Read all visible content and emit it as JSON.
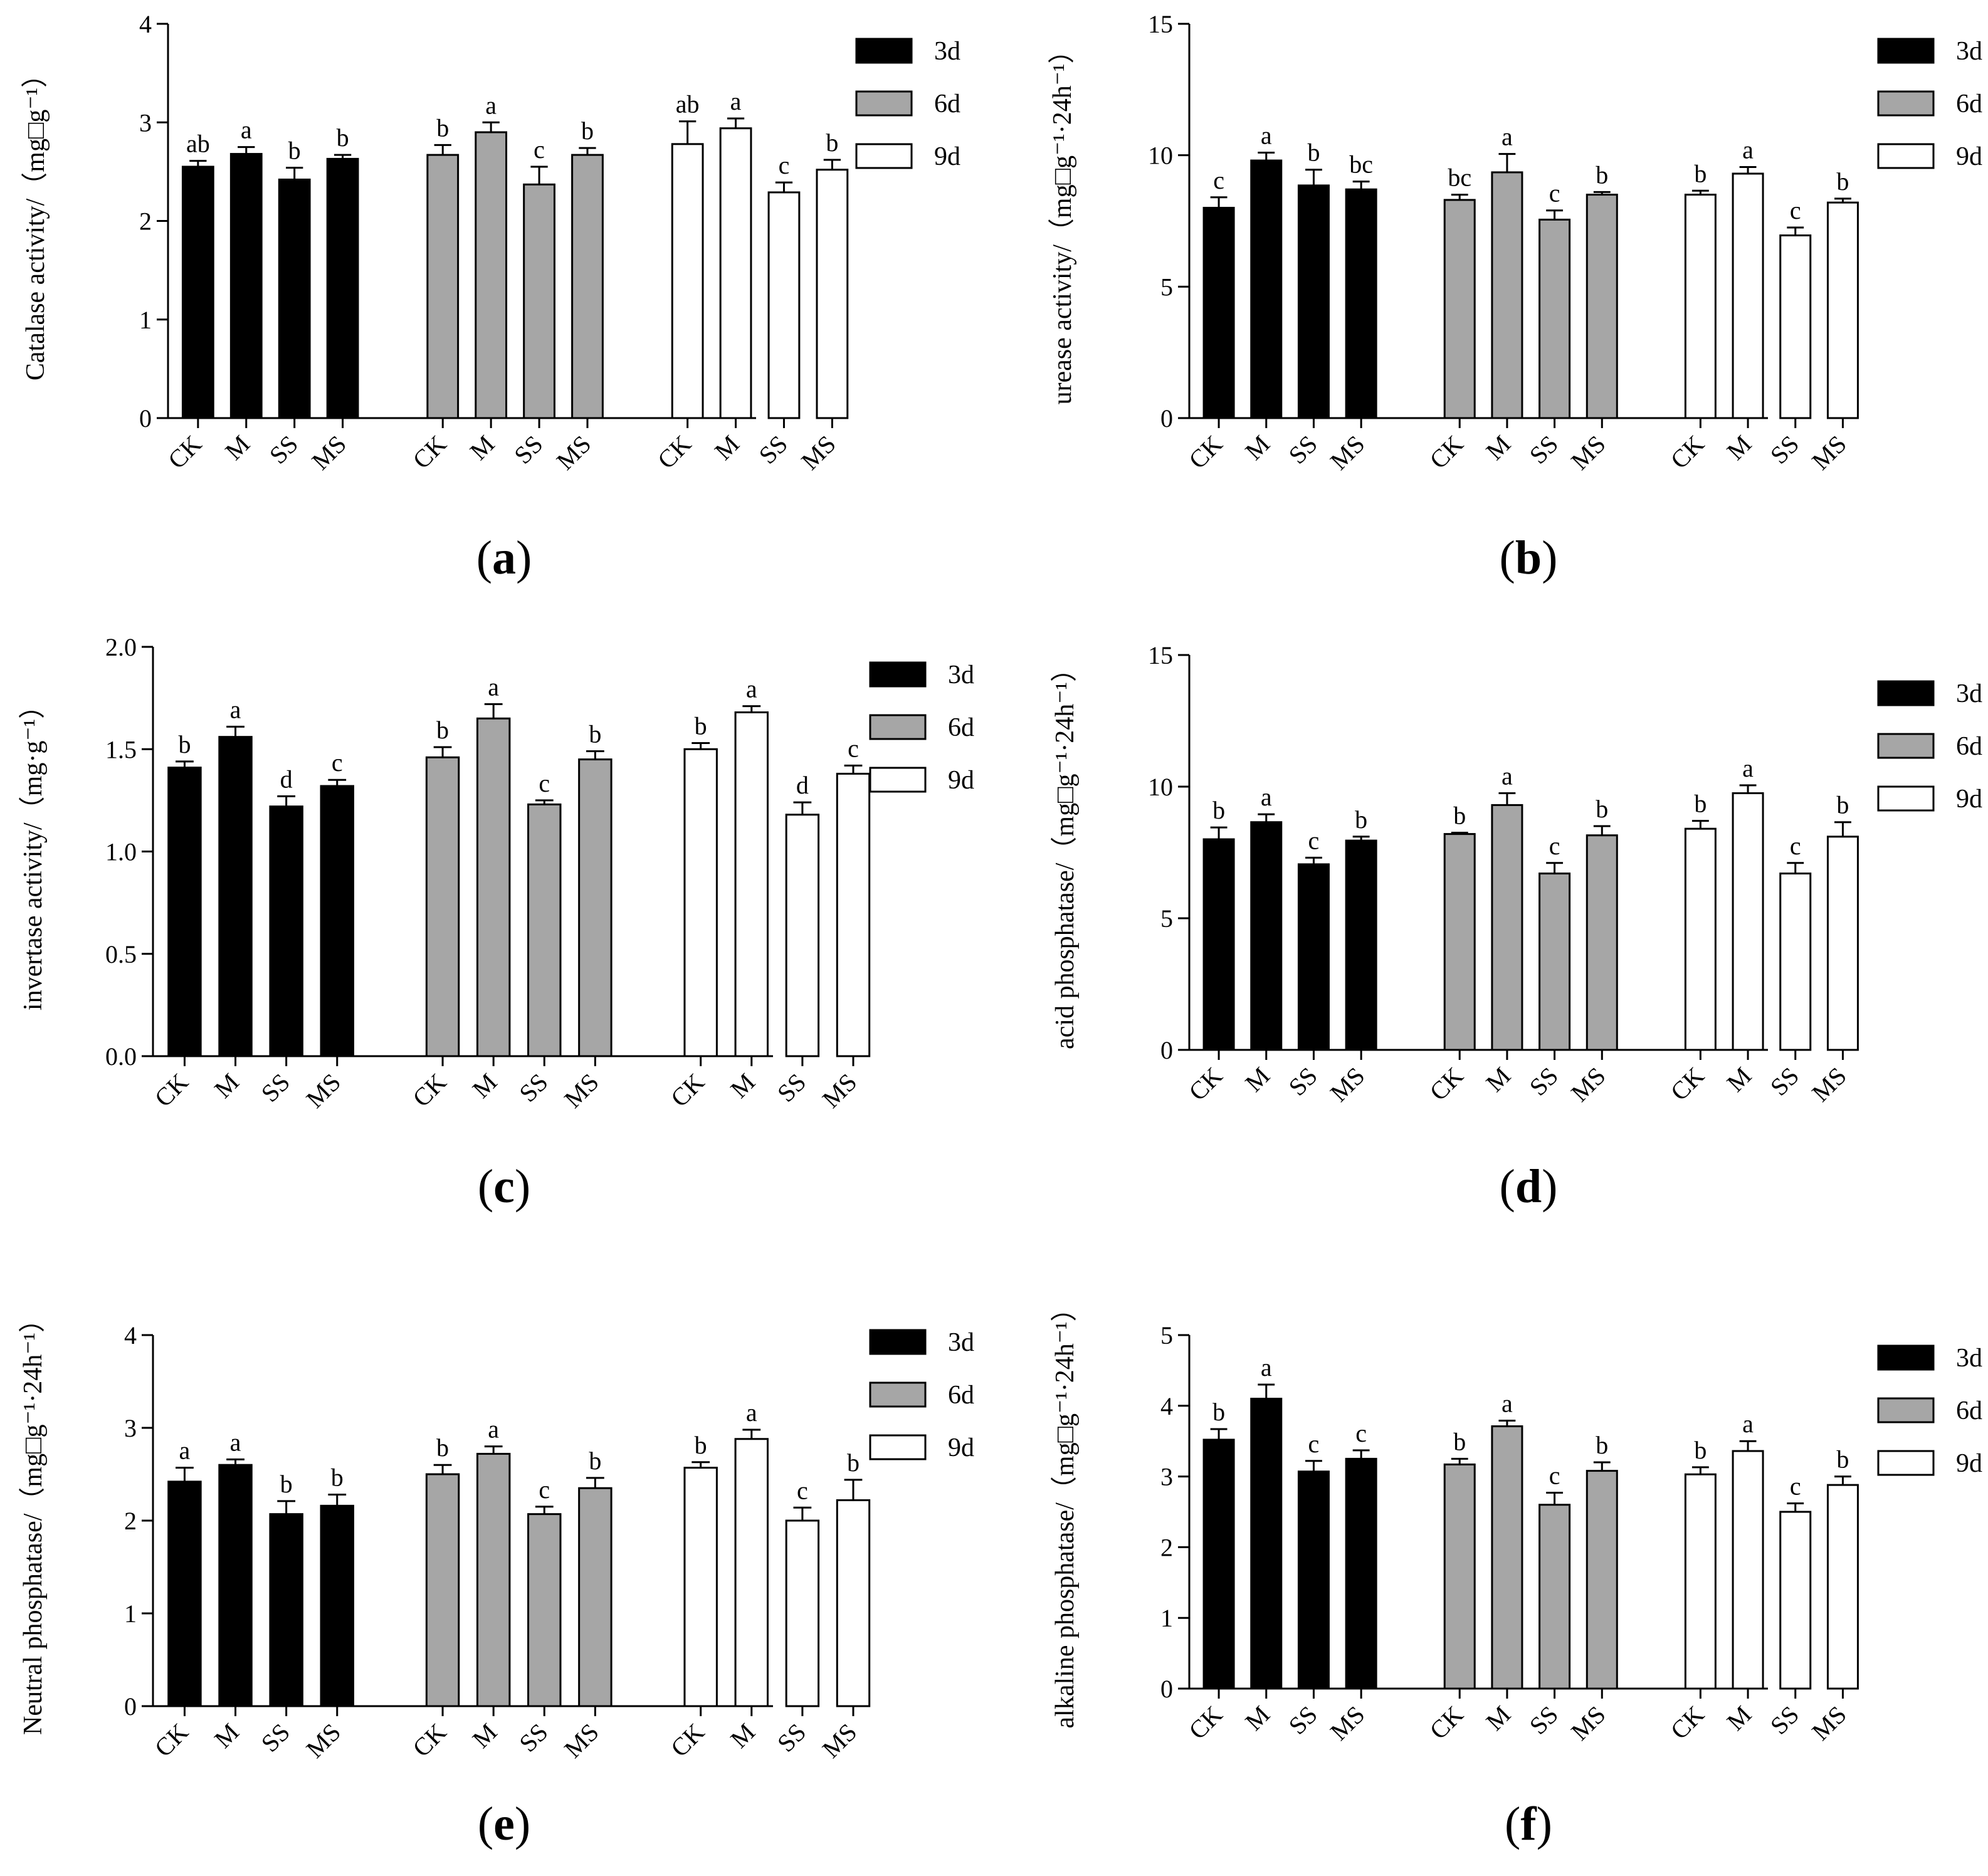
{
  "colors": {
    "3d": "#000000",
    "6d": "#a6a6a6",
    "9d": "#ffffff"
  },
  "chart_data": [
    {
      "type": "bar",
      "panel": "(a)",
      "panel_letter": "a",
      "ylabel": "Catalase activity/（mg□g⁻¹）",
      "ylim": [
        0,
        4
      ],
      "yticks": [
        "0",
        "1",
        "2",
        "3",
        "4"
      ],
      "categories": [
        "CK",
        "M",
        "SS",
        "MS"
      ],
      "series": [
        {
          "name": "3d",
          "values": [
            2.55,
            2.68,
            2.42,
            2.63
          ],
          "errors": [
            0.06,
            0.07,
            0.12,
            0.04
          ],
          "letters": [
            "ab",
            "a",
            "b",
            "b"
          ]
        },
        {
          "name": "6d",
          "values": [
            2.67,
            2.9,
            2.37,
            2.67
          ],
          "errors": [
            0.1,
            0.1,
            0.18,
            0.07
          ],
          "letters": [
            "b",
            "a",
            "c",
            "b"
          ]
        },
        {
          "name": "9d",
          "values": [
            2.78,
            2.94,
            2.29,
            2.52
          ],
          "errors": [
            0.23,
            0.1,
            0.1,
            0.1
          ],
          "letters": [
            "ab",
            "a",
            "c",
            "b"
          ]
        }
      ]
    },
    {
      "type": "bar",
      "panel": "(b)",
      "panel_letter": "b",
      "ylabel": "urease activity/（mg□g⁻¹·24h⁻¹）",
      "ylim": [
        0,
        15
      ],
      "yticks": [
        "0",
        "5",
        "10",
        "15"
      ],
      "categories": [
        "CK",
        "M",
        "SS",
        "MS"
      ],
      "series": [
        {
          "name": "3d",
          "values": [
            8.0,
            9.8,
            8.85,
            8.7
          ],
          "errors": [
            0.4,
            0.3,
            0.6,
            0.3
          ],
          "letters": [
            "c",
            "a",
            "b",
            "bc"
          ]
        },
        {
          "name": "6d",
          "values": [
            8.3,
            9.35,
            7.55,
            8.5
          ],
          "errors": [
            0.2,
            0.7,
            0.35,
            0.1
          ],
          "letters": [
            "bc",
            "a",
            "c",
            "b"
          ]
        },
        {
          "name": "9d",
          "values": [
            8.5,
            9.3,
            6.95,
            8.2
          ],
          "errors": [
            0.15,
            0.25,
            0.3,
            0.15
          ],
          "letters": [
            "b",
            "a",
            "c",
            "b"
          ]
        }
      ]
    },
    {
      "type": "bar",
      "panel": "(c)",
      "panel_letter": "c",
      "ylabel": "invertase activity/（mg·g⁻¹）",
      "ylim": [
        0,
        2.0
      ],
      "yticks": [
        "0.0",
        "0.5",
        "1.0",
        "1.5",
        "2.0"
      ],
      "categories": [
        "CK",
        "M",
        "SS",
        "MS"
      ],
      "series": [
        {
          "name": "3d",
          "values": [
            1.41,
            1.56,
            1.22,
            1.32
          ],
          "errors": [
            0.03,
            0.05,
            0.05,
            0.03
          ],
          "letters": [
            "b",
            "a",
            "d",
            "c"
          ]
        },
        {
          "name": "6d",
          "values": [
            1.46,
            1.65,
            1.23,
            1.45
          ],
          "errors": [
            0.05,
            0.07,
            0.02,
            0.04
          ],
          "letters": [
            "b",
            "a",
            "c",
            "b"
          ]
        },
        {
          "name": "9d",
          "values": [
            1.5,
            1.68,
            1.18,
            1.38
          ],
          "errors": [
            0.03,
            0.03,
            0.06,
            0.04
          ],
          "letters": [
            "b",
            "a",
            "d",
            "c"
          ]
        }
      ]
    },
    {
      "type": "bar",
      "panel": "(d)",
      "panel_letter": "d",
      "ylabel": "acid phosphatase/（mg□g⁻¹·24h⁻¹）",
      "ylim": [
        0,
        15
      ],
      "yticks": [
        "0",
        "5",
        "10",
        "15"
      ],
      "categories": [
        "CK",
        "M",
        "SS",
        "MS"
      ],
      "series": [
        {
          "name": "3d",
          "values": [
            8.0,
            8.65,
            7.05,
            7.95
          ],
          "errors": [
            0.45,
            0.3,
            0.25,
            0.15
          ],
          "letters": [
            "b",
            "a",
            "c",
            "b"
          ]
        },
        {
          "name": "6d",
          "values": [
            8.2,
            9.3,
            6.7,
            8.15
          ],
          "errors": [
            0.05,
            0.45,
            0.4,
            0.35
          ],
          "letters": [
            "b",
            "a",
            "c",
            "b"
          ]
        },
        {
          "name": "9d",
          "values": [
            8.4,
            9.75,
            6.7,
            8.1
          ],
          "errors": [
            0.3,
            0.3,
            0.4,
            0.55
          ],
          "letters": [
            "b",
            "a",
            "c",
            "b"
          ]
        }
      ]
    },
    {
      "type": "bar",
      "panel": "(e)",
      "panel_letter": "e",
      "ylabel": "Neutral phosphatase/（mg□g⁻¹·24h⁻¹）",
      "ylim": [
        0,
        4
      ],
      "yticks": [
        "0",
        "1",
        "2",
        "3",
        "4"
      ],
      "categories": [
        "CK",
        "M",
        "SS",
        "MS"
      ],
      "series": [
        {
          "name": "3d",
          "values": [
            2.42,
            2.6,
            2.07,
            2.16
          ],
          "errors": [
            0.15,
            0.06,
            0.14,
            0.12
          ],
          "letters": [
            "a",
            "a",
            "b",
            "b"
          ]
        },
        {
          "name": "6d",
          "values": [
            2.5,
            2.72,
            2.07,
            2.35
          ],
          "errors": [
            0.1,
            0.08,
            0.08,
            0.11
          ],
          "letters": [
            "b",
            "a",
            "c",
            "b"
          ]
        },
        {
          "name": "9d",
          "values": [
            2.57,
            2.88,
            2.0,
            2.22
          ],
          "errors": [
            0.06,
            0.1,
            0.14,
            0.22
          ],
          "letters": [
            "b",
            "a",
            "c",
            "b"
          ]
        }
      ]
    },
    {
      "type": "bar",
      "panel": "(f)",
      "panel_letter": "f",
      "ylabel": "alkaline phosphatase/（mg□g⁻¹·24h⁻¹）",
      "ylim": [
        0,
        5
      ],
      "yticks": [
        "0",
        "1",
        "2",
        "3",
        "4",
        "5"
      ],
      "categories": [
        "CK",
        "M",
        "SS",
        "MS"
      ],
      "series": [
        {
          "name": "3d",
          "values": [
            3.52,
            4.1,
            3.07,
            3.25
          ],
          "errors": [
            0.15,
            0.2,
            0.15,
            0.12
          ],
          "letters": [
            "b",
            "a",
            "c",
            "c"
          ]
        },
        {
          "name": "6d",
          "values": [
            3.17,
            3.71,
            2.6,
            3.08
          ],
          "errors": [
            0.08,
            0.08,
            0.17,
            0.12
          ],
          "letters": [
            "b",
            "a",
            "c",
            "b"
          ]
        },
        {
          "name": "9d",
          "values": [
            3.03,
            3.36,
            2.5,
            2.88
          ],
          "errors": [
            0.1,
            0.14,
            0.12,
            0.12
          ],
          "letters": [
            "b",
            "a",
            "c",
            "b"
          ]
        }
      ]
    }
  ]
}
